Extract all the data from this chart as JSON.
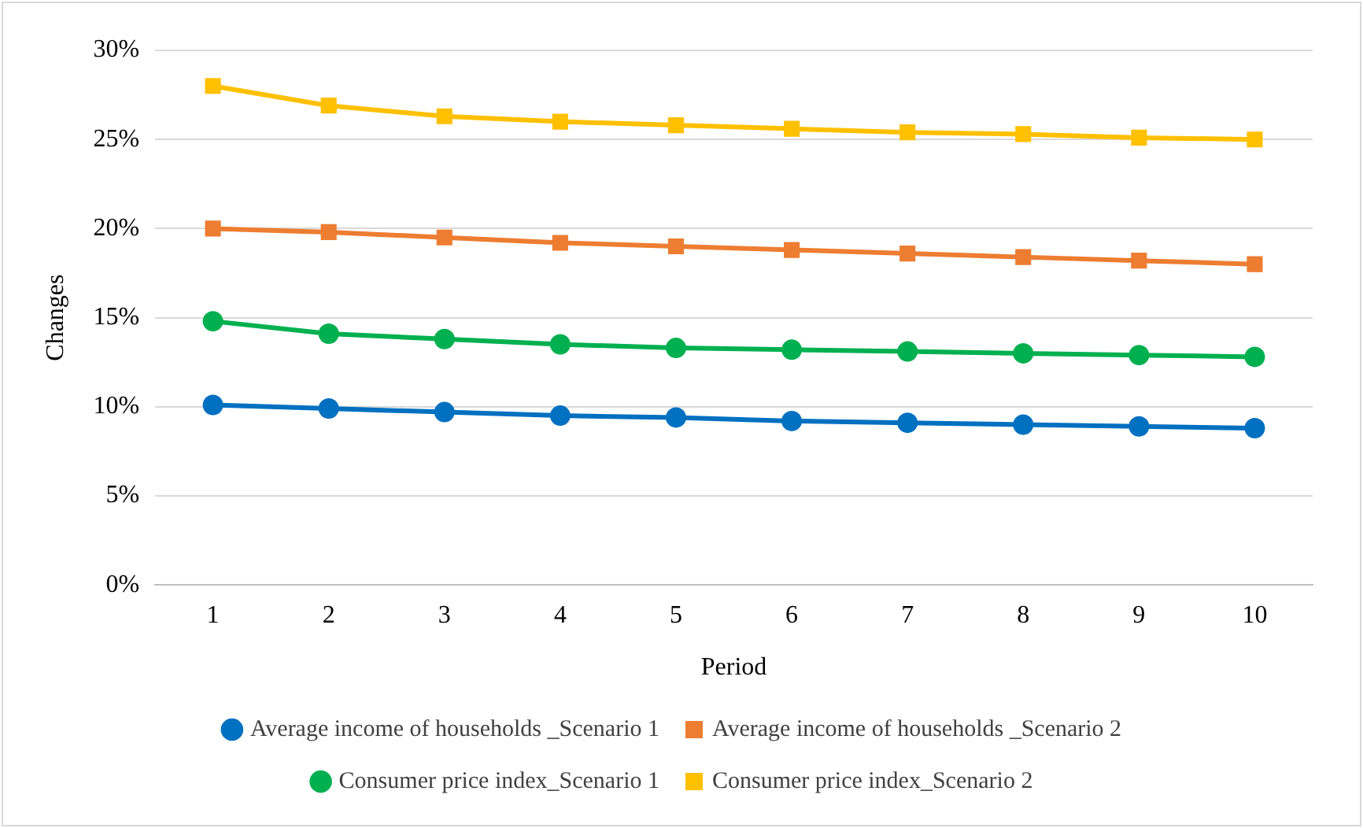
{
  "chart_data": {
    "type": "line",
    "xlabel": "Period",
    "ylabel": "Changes",
    "categories": [
      "1",
      "2",
      "3",
      "4",
      "5",
      "6",
      "7",
      "8",
      "9",
      "10"
    ],
    "series": [
      {
        "name": "Average income of households _Scenario 1",
        "color": "#0070c0",
        "marker": "circle",
        "values": [
          10.1,
          9.9,
          9.7,
          9.5,
          9.4,
          9.2,
          9.1,
          9.0,
          8.9,
          8.8
        ]
      },
      {
        "name": "Average income of households _Scenario 2",
        "color": "#ed7d31",
        "marker": "square",
        "values": [
          20.0,
          19.8,
          19.5,
          19.2,
          19.0,
          18.8,
          18.6,
          18.4,
          18.2,
          18.0
        ]
      },
      {
        "name": "Consumer price index_Scenario 1",
        "color": "#00b050",
        "marker": "circle",
        "values": [
          14.8,
          14.1,
          13.8,
          13.5,
          13.3,
          13.2,
          13.1,
          13.0,
          12.9,
          12.8
        ]
      },
      {
        "name": "Consumer price index_Scenario 2",
        "color": "#ffc000",
        "marker": "square",
        "values": [
          28.0,
          26.9,
          26.3,
          26.0,
          25.8,
          25.6,
          25.4,
          25.3,
          25.1,
          25.0
        ]
      }
    ],
    "ylim": [
      0,
      30
    ],
    "yticks": [
      {
        "value": 0,
        "label": "0%"
      },
      {
        "value": 5,
        "label": "5%"
      },
      {
        "value": 10,
        "label": "10%"
      },
      {
        "value": 15,
        "label": "15%"
      },
      {
        "value": 20,
        "label": "20%"
      },
      {
        "value": 25,
        "label": "25%"
      },
      {
        "value": 30,
        "label": "30%"
      }
    ],
    "grid": "y",
    "legend": "bottom",
    "line_style": "solid"
  }
}
